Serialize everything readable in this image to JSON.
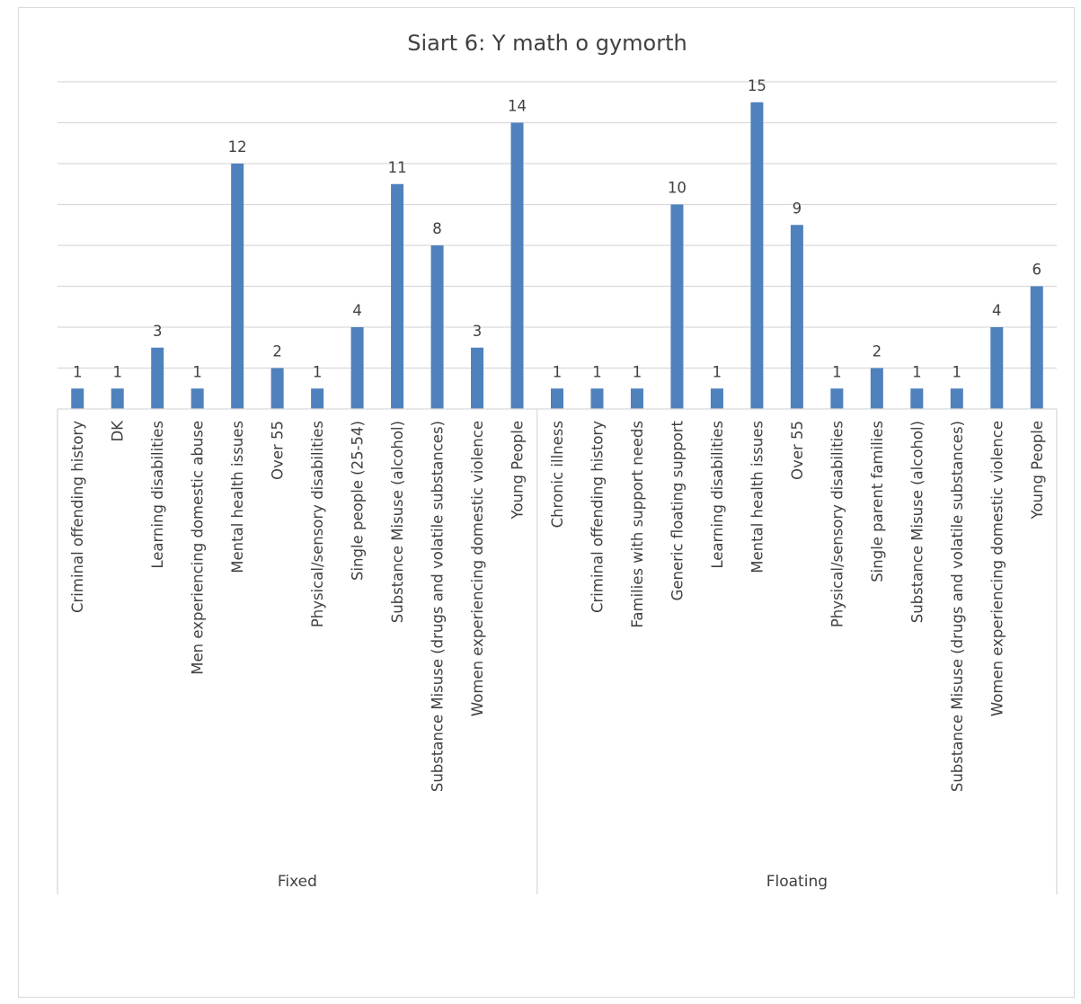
{
  "chart_data": {
    "type": "bar",
    "title": "Siart 6: Y math o gymorth",
    "xlabel": "",
    "ylabel": "",
    "ylim": [
      0,
      16
    ],
    "grid": true,
    "bar_color": "#4f81bd",
    "gridline_color": "#d9d9d9",
    "groups": [
      {
        "name": "Fixed",
        "categories": [
          "Criminal offending history",
          "DK",
          "Learning disabilities",
          "Men experiencing domestic abuse",
          "Mental health issues",
          "Over 55",
          "Physical/sensory disabilities",
          "Single people (25-54)",
          "Substance Misuse (alcohol)",
          "Substance Misuse (drugs and volatile substances)",
          "Women experiencing domestic violence",
          "Young People"
        ],
        "values": [
          1,
          1,
          3,
          1,
          12,
          2,
          1,
          4,
          11,
          8,
          3,
          14
        ]
      },
      {
        "name": "Floating",
        "categories": [
          "Chronic illness",
          "Criminal offending history",
          "Families with support needs",
          "Generic floating support",
          "Learning disabilities",
          "Mental health issues",
          "Over 55",
          "Physical/sensory disabilities",
          "Single parent families",
          "Substance Misuse (alcohol)",
          "Substance Misuse (drugs and volatile substances)",
          "Women experiencing domestic violence",
          "Young People"
        ],
        "values": [
          1,
          1,
          1,
          10,
          1,
          15,
          9,
          1,
          2,
          1,
          1,
          4,
          6
        ]
      }
    ]
  }
}
